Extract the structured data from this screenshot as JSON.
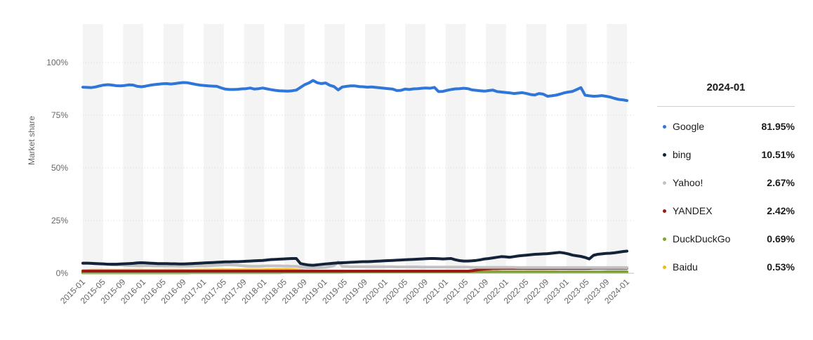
{
  "chart_data": {
    "type": "line",
    "ylabel": "Market share",
    "y_ticks": [
      "0%",
      "25%",
      "50%",
      "75%",
      "100%"
    ],
    "ylim": [
      0,
      100
    ],
    "x_tick_labels": [
      "2015-01",
      "2015-05",
      "2015-09",
      "2016-01",
      "2016-05",
      "2016-09",
      "2017-01",
      "2017-05",
      "2017-09",
      "2018-01",
      "2018-05",
      "2018-09",
      "2019-01",
      "2019-05",
      "2019-09",
      "2020-01",
      "2020-05",
      "2020-09",
      "2021-01",
      "2021-05",
      "2021-09",
      "2022-01",
      "2022-05",
      "2022-09",
      "2023-01",
      "2023-05",
      "2023-09",
      "2024-01"
    ],
    "x_start": "2015-01",
    "grid": "alternating vertical bands",
    "series": [
      {
        "name": "Google",
        "color": "#2f76db",
        "values": [
          88.3,
          88.2,
          88.1,
          88.4,
          88.9,
          89.3,
          89.5,
          89.3,
          89.0,
          88.9,
          89.1,
          89.4,
          89.3,
          88.7,
          88.5,
          88.8,
          89.2,
          89.5,
          89.7,
          89.9,
          90.0,
          89.8,
          90.0,
          90.3,
          90.5,
          90.4,
          90.0,
          89.6,
          89.3,
          89.1,
          88.9,
          88.8,
          88.7,
          88.0,
          87.4,
          87.2,
          87.2,
          87.3,
          87.5,
          87.6,
          87.9,
          87.4,
          87.6,
          87.9,
          87.5,
          87.1,
          86.8,
          86.6,
          86.5,
          86.4,
          86.6,
          86.9,
          88.2,
          89.5,
          90.3,
          91.5,
          90.4,
          90.0,
          90.3,
          89.2,
          88.6,
          87.0,
          88.4,
          88.7,
          88.9,
          88.9,
          88.6,
          88.5,
          88.3,
          88.4,
          88.2,
          88.0,
          87.8,
          87.6,
          87.4,
          86.7,
          86.8,
          87.4,
          87.2,
          87.5,
          87.6,
          87.8,
          87.9,
          87.8,
          88.2,
          86.2,
          86.3,
          86.8,
          87.2,
          87.5,
          87.6,
          87.8,
          87.6,
          87.0,
          86.8,
          86.6,
          86.4,
          86.7,
          86.9,
          86.2,
          86.0,
          85.8,
          85.6,
          85.3,
          85.5,
          85.7,
          85.3,
          84.8,
          84.6,
          85.3,
          85.0,
          84.0,
          84.2,
          84.5,
          85.0,
          85.6,
          86.0,
          86.3,
          87.2,
          88.1,
          84.5,
          84.2,
          84.0,
          84.1,
          84.3,
          84.0,
          83.6,
          83.0,
          82.5,
          82.3,
          81.95
        ]
      },
      {
        "name": "bing",
        "color": "#14233a",
        "values": [
          4.8,
          4.8,
          4.7,
          4.6,
          4.5,
          4.4,
          4.3,
          4.3,
          4.3,
          4.4,
          4.5,
          4.6,
          4.7,
          4.9,
          5.0,
          4.9,
          4.8,
          4.7,
          4.6,
          4.6,
          4.6,
          4.5,
          4.5,
          4.4,
          4.4,
          4.5,
          4.6,
          4.7,
          4.8,
          4.9,
          5.0,
          5.1,
          5.2,
          5.3,
          5.4,
          5.4,
          5.5,
          5.5,
          5.6,
          5.7,
          5.8,
          5.9,
          6.0,
          6.1,
          6.3,
          6.5,
          6.6,
          6.7,
          6.8,
          6.9,
          7.0,
          7.0,
          4.6,
          4.2,
          3.9,
          3.8,
          4.0,
          4.2,
          4.4,
          4.6,
          4.8,
          4.9,
          5.0,
          5.1,
          5.2,
          5.3,
          5.4,
          5.5,
          5.5,
          5.6,
          5.7,
          5.8,
          5.9,
          6.0,
          6.1,
          6.2,
          6.3,
          6.4,
          6.5,
          6.6,
          6.7,
          6.8,
          6.9,
          7.0,
          7.0,
          6.9,
          6.8,
          6.9,
          7.0,
          6.4,
          6.0,
          5.8,
          5.8,
          5.9,
          6.1,
          6.4,
          6.8,
          7.0,
          7.3,
          7.6,
          7.9,
          7.8,
          7.6,
          7.9,
          8.2,
          8.4,
          8.6,
          8.8,
          9.0,
          9.1,
          9.2,
          9.3,
          9.5,
          9.7,
          9.9,
          9.6,
          9.2,
          8.6,
          8.3,
          8.0,
          7.5,
          6.8,
          8.5,
          9.0,
          9.2,
          9.4,
          9.5,
          9.7,
          10.0,
          10.3,
          10.51
        ]
      },
      {
        "name": "Yahoo!",
        "color": "#c2c2c2",
        "values": [
          4.7,
          4.8,
          4.8,
          4.7,
          4.6,
          4.5,
          4.2,
          4.0,
          3.9,
          3.9,
          3.8,
          3.7,
          3.7,
          3.6,
          3.6,
          3.6,
          3.6,
          3.5,
          3.5,
          3.5,
          3.5,
          3.5,
          3.5,
          3.4,
          3.4,
          3.4,
          3.4,
          3.5,
          3.5,
          3.5,
          3.6,
          3.7,
          3.8,
          3.9,
          4.0,
          4.0,
          3.9,
          3.8,
          3.6,
          3.4,
          3.3,
          3.3,
          3.3,
          3.4,
          3.5,
          3.5,
          3.5,
          3.5,
          3.4,
          3.4,
          3.3,
          3.3,
          3.0,
          2.8,
          2.6,
          2.5,
          2.6,
          2.7,
          2.8,
          3.2,
          3.6,
          5.4,
          3.3,
          3.2,
          3.1,
          3.1,
          3.1,
          3.1,
          3.1,
          3.1,
          3.1,
          3.1,
          3.1,
          3.1,
          3.1,
          3.0,
          3.0,
          3.0,
          3.0,
          3.0,
          3.0,
          2.9,
          2.9,
          2.9,
          2.9,
          2.9,
          2.9,
          2.9,
          2.9,
          2.9,
          2.9,
          2.9,
          2.9,
          2.8,
          2.8,
          2.8,
          2.8,
          2.8,
          2.8,
          2.8,
          2.8,
          2.8,
          2.8,
          2.8,
          2.7,
          2.7,
          2.7,
          2.7,
          2.7,
          2.7,
          2.7,
          2.7,
          2.7,
          2.7,
          2.7,
          2.7,
          2.7,
          2.7,
          2.7,
          2.7,
          2.7,
          2.7,
          2.7,
          2.7,
          2.7,
          2.7,
          2.7,
          2.7,
          2.7,
          2.7,
          2.67
        ]
      },
      {
        "name": "YANDEX",
        "color": "#9b1a14",
        "values": [
          1.0,
          1.0,
          1.0,
          1.0,
          1.0,
          1.0,
          1.0,
          1.0,
          1.0,
          1.0,
          1.0,
          1.0,
          1.0,
          1.0,
          1.0,
          1.0,
          1.0,
          1.0,
          1.0,
          1.0,
          1.0,
          1.0,
          1.0,
          1.0,
          1.0,
          1.0,
          1.0,
          1.0,
          1.0,
          1.0,
          1.0,
          1.0,
          1.0,
          1.0,
          1.0,
          1.0,
          1.0,
          1.0,
          1.0,
          1.0,
          1.0,
          1.0,
          1.0,
          1.0,
          1.0,
          1.0,
          1.0,
          1.0,
          1.0,
          1.0,
          1.0,
          1.0,
          1.0,
          1.0,
          1.0,
          1.0,
          1.0,
          1.0,
          1.0,
          1.0,
          1.0,
          1.0,
          1.0,
          1.0,
          1.0,
          1.0,
          1.0,
          1.0,
          1.0,
          1.0,
          1.0,
          1.0,
          1.0,
          1.0,
          1.0,
          1.0,
          1.0,
          1.0,
          1.0,
          1.0,
          1.0,
          1.0,
          1.0,
          1.0,
          1.0,
          1.0,
          1.0,
          1.0,
          1.0,
          1.0,
          1.0,
          1.0,
          1.0,
          1.2,
          1.5,
          1.8,
          2.0,
          2.1,
          2.2,
          2.2,
          2.3,
          2.3,
          2.3,
          2.3,
          2.3,
          2.3,
          2.3,
          2.3,
          2.3,
          2.3,
          2.3,
          2.3,
          2.3,
          2.3,
          2.3,
          2.3,
          2.3,
          2.3,
          2.3,
          2.3,
          2.3,
          2.3,
          2.4,
          2.4,
          2.4,
          2.4,
          2.4,
          2.4,
          2.4,
          2.4,
          2.42
        ]
      },
      {
        "name": "DuckDuckGo",
        "color": "#7ea62b",
        "values": [
          0.2,
          0.2,
          0.2,
          0.2,
          0.2,
          0.2,
          0.2,
          0.2,
          0.2,
          0.2,
          0.2,
          0.2,
          0.2,
          0.2,
          0.2,
          0.2,
          0.2,
          0.2,
          0.2,
          0.2,
          0.2,
          0.2,
          0.2,
          0.2,
          0.2,
          0.2,
          0.3,
          0.3,
          0.3,
          0.3,
          0.3,
          0.3,
          0.3,
          0.3,
          0.3,
          0.3,
          0.3,
          0.3,
          0.3,
          0.3,
          0.3,
          0.3,
          0.3,
          0.3,
          0.3,
          0.3,
          0.3,
          0.3,
          0.4,
          0.4,
          0.4,
          0.4,
          0.4,
          0.4,
          0.4,
          0.4,
          0.4,
          0.4,
          0.4,
          0.4,
          0.4,
          0.4,
          0.4,
          0.5,
          0.5,
          0.5,
          0.5,
          0.5,
          0.5,
          0.5,
          0.5,
          0.5,
          0.5,
          0.5,
          0.5,
          0.5,
          0.5,
          0.5,
          0.6,
          0.6,
          0.6,
          0.6,
          0.6,
          0.6,
          0.6,
          0.6,
          0.6,
          0.6,
          0.6,
          0.6,
          0.6,
          0.6,
          0.6,
          0.6,
          0.6,
          0.6,
          0.6,
          0.6,
          0.6,
          0.6,
          0.6,
          0.6,
          0.6,
          0.6,
          0.6,
          0.6,
          0.6,
          0.6,
          0.6,
          0.6,
          0.6,
          0.6,
          0.6,
          0.6,
          0.6,
          0.6,
          0.6,
          0.6,
          0.6,
          0.6,
          0.6,
          0.6,
          0.6,
          0.6,
          0.6,
          0.7,
          0.7,
          0.7,
          0.7,
          0.7,
          0.69
        ]
      },
      {
        "name": "Baidu",
        "color": "#f2b820",
        "values": [
          1.3,
          1.3,
          1.4,
          1.4,
          1.4,
          1.4,
          1.4,
          1.4,
          1.4,
          1.4,
          1.4,
          1.4,
          1.4,
          1.4,
          1.4,
          1.4,
          1.4,
          1.4,
          1.4,
          1.4,
          1.4,
          1.4,
          1.4,
          1.4,
          1.4,
          1.4,
          1.4,
          1.5,
          1.5,
          1.5,
          1.5,
          1.5,
          1.6,
          1.6,
          1.6,
          1.6,
          1.6,
          1.6,
          1.6,
          1.6,
          1.6,
          1.6,
          1.6,
          1.6,
          1.7,
          1.7,
          1.8,
          1.8,
          1.8,
          1.8,
          1.7,
          1.6,
          1.4,
          1.2,
          1.1,
          1.0,
          0.9,
          0.9,
          0.9,
          0.9,
          0.9,
          0.9,
          0.9,
          0.9,
          0.9,
          0.9,
          0.9,
          0.9,
          0.9,
          0.8,
          0.8,
          0.8,
          0.8,
          0.8,
          0.8,
          0.8,
          0.8,
          0.8,
          0.8,
          0.8,
          0.8,
          0.8,
          0.8,
          0.8,
          0.8,
          0.8,
          0.8,
          0.8,
          0.8,
          0.8,
          0.8,
          0.8,
          0.8,
          0.7,
          0.7,
          0.7,
          0.7,
          0.7,
          0.7,
          0.7,
          0.7,
          0.7,
          0.7,
          0.7,
          0.7,
          0.7,
          0.7,
          0.7,
          0.7,
          0.7,
          0.7,
          0.7,
          0.7,
          0.7,
          0.6,
          0.6,
          0.6,
          0.6,
          0.6,
          0.6,
          0.6,
          0.6,
          0.6,
          0.6,
          0.6,
          0.6,
          0.6,
          0.5,
          0.5,
          0.5,
          0.53
        ]
      }
    ]
  },
  "panel": {
    "title": "2024-01",
    "items": [
      {
        "name": "Google",
        "value": "81.95%",
        "color": "#2f76db"
      },
      {
        "name": "bing",
        "value": "10.51%",
        "color": "#14233a"
      },
      {
        "name": "Yahoo!",
        "value": "2.67%",
        "color": "#c2c2c2"
      },
      {
        "name": "YANDEX",
        "value": "2.42%",
        "color": "#9b1a14"
      },
      {
        "name": "DuckDuckGo",
        "value": "0.69%",
        "color": "#7ea62b"
      },
      {
        "name": "Baidu",
        "value": "0.53%",
        "color": "#f2b820"
      }
    ]
  }
}
